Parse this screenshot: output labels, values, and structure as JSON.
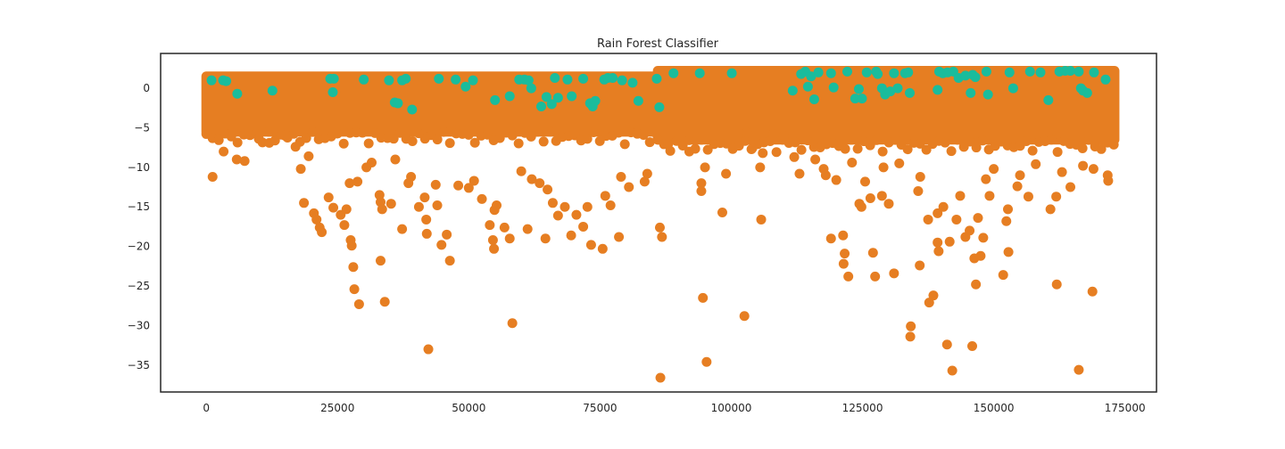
{
  "chart_data": {
    "type": "scatter",
    "title": "Rain Forest Classifier",
    "xlabel": "",
    "ylabel": "",
    "xlim": [
      -8700,
      181000
    ],
    "ylim": [
      -38.4,
      4.4
    ],
    "x_ticks": [
      0,
      25000,
      50000,
      75000,
      100000,
      125000,
      150000,
      175000
    ],
    "x_tick_labels": [
      "0",
      "25000",
      "50000",
      "75000",
      "100000",
      "125000",
      "150000",
      "175000"
    ],
    "y_ticks": [
      0,
      -5,
      -10,
      -15,
      -20,
      -25,
      -30,
      -35
    ],
    "y_tick_labels": [
      "0",
      "−5",
      "−10",
      "−15",
      "−20",
      "−25",
      "−30",
      "−35"
    ],
    "grid": false,
    "legend": "none",
    "colors": {
      "majority": "#e67e22",
      "minority": "#1abc9c",
      "frame": "#262626",
      "text": "#262626"
    },
    "series": [
      {
        "color": "#e67e22",
        "note_dense_band": "dense band of points covering the top of each x range",
        "bands": [
          {
            "x": [
              0,
              86000
            ],
            "y": [
              -5.5,
              1.5
            ]
          },
          {
            "x": [
              86000,
              173000
            ],
            "y": [
              -6.5,
              2.2
            ]
          }
        ],
        "points": [
          [
            1200,
            -11.2
          ],
          [
            3300,
            -8.0
          ],
          [
            5800,
            -9.0
          ],
          [
            7300,
            -9.2
          ],
          [
            18000,
            -10.2
          ],
          [
            18600,
            -14.5
          ],
          [
            20500,
            -15.8
          ],
          [
            21000,
            -16.6
          ],
          [
            21600,
            -17.6
          ],
          [
            22000,
            -18.2
          ],
          [
            23300,
            -13.8
          ],
          [
            24200,
            -15.1
          ],
          [
            25600,
            -16.0
          ],
          [
            26300,
            -17.3
          ],
          [
            26700,
            -15.3
          ],
          [
            27500,
            -19.2
          ],
          [
            27700,
            -19.9
          ],
          [
            28000,
            -22.6
          ],
          [
            28200,
            -25.4
          ],
          [
            29100,
            -27.3
          ],
          [
            27300,
            -12.0
          ],
          [
            28800,
            -11.8
          ],
          [
            33000,
            -13.5
          ],
          [
            33200,
            -14.4
          ],
          [
            33500,
            -15.3
          ],
          [
            33200,
            -21.8
          ],
          [
            34000,
            -27.0
          ],
          [
            35200,
            -14.6
          ],
          [
            37300,
            -17.8
          ],
          [
            39000,
            -11.2
          ],
          [
            40500,
            -15.0
          ],
          [
            41600,
            -13.8
          ],
          [
            41900,
            -16.6
          ],
          [
            42000,
            -18.4
          ],
          [
            42300,
            -33.0
          ],
          [
            43700,
            -12.2
          ],
          [
            44000,
            -14.8
          ],
          [
            44800,
            -19.8
          ],
          [
            45800,
            -18.5
          ],
          [
            46400,
            -21.8
          ],
          [
            54000,
            -17.3
          ],
          [
            54600,
            -19.2
          ],
          [
            54800,
            -20.3
          ],
          [
            54900,
            -15.4
          ],
          [
            55300,
            -14.8
          ],
          [
            56800,
            -17.6
          ],
          [
            57800,
            -19.0
          ],
          [
            58300,
            -29.7
          ],
          [
            61200,
            -17.8
          ],
          [
            64600,
            -19.0
          ],
          [
            66000,
            -14.5
          ],
          [
            67000,
            -16.1
          ],
          [
            68300,
            -15.0
          ],
          [
            69500,
            -18.6
          ],
          [
            70500,
            -16.0
          ],
          [
            71800,
            -17.5
          ],
          [
            72600,
            -15.0
          ],
          [
            73300,
            -19.8
          ],
          [
            75500,
            -20.3
          ],
          [
            78600,
            -18.8
          ],
          [
            86400,
            -17.6
          ],
          [
            86800,
            -18.8
          ],
          [
            86500,
            -36.6
          ],
          [
            94600,
            -26.5
          ],
          [
            95300,
            -34.6
          ],
          [
            94300,
            -13.0
          ],
          [
            94300,
            -12.0
          ],
          [
            95000,
            -10.0
          ],
          [
            98300,
            -15.7
          ],
          [
            102500,
            -28.8
          ],
          [
            105700,
            -16.6
          ],
          [
            105500,
            -10.0
          ],
          [
            112000,
            -8.7
          ],
          [
            117600,
            -10.2
          ],
          [
            119000,
            -19.0
          ],
          [
            120000,
            -11.6
          ],
          [
            121300,
            -18.6
          ],
          [
            121600,
            -20.9
          ],
          [
            121400,
            -22.2
          ],
          [
            122300,
            -23.8
          ],
          [
            124400,
            -14.6
          ],
          [
            124800,
            -15.0
          ],
          [
            126500,
            -13.9
          ],
          [
            127000,
            -20.8
          ],
          [
            127400,
            -23.8
          ],
          [
            128700,
            -13.6
          ],
          [
            130000,
            -14.6
          ],
          [
            131000,
            -23.4
          ],
          [
            134200,
            -30.1
          ],
          [
            134100,
            -31.4
          ],
          [
            135600,
            -13.0
          ],
          [
            135900,
            -22.4
          ],
          [
            137500,
            -16.6
          ],
          [
            137700,
            -27.1
          ],
          [
            138500,
            -26.2
          ],
          [
            139300,
            -19.5
          ],
          [
            139500,
            -20.6
          ],
          [
            139300,
            -15.8
          ],
          [
            140400,
            -15.0
          ],
          [
            141100,
            -32.4
          ],
          [
            141600,
            -19.4
          ],
          [
            142100,
            -35.7
          ],
          [
            142900,
            -16.6
          ],
          [
            143600,
            -13.6
          ],
          [
            144600,
            -18.8
          ],
          [
            145400,
            -18.0
          ],
          [
            145900,
            -32.6
          ],
          [
            146300,
            -21.5
          ],
          [
            146600,
            -24.8
          ],
          [
            147000,
            -16.4
          ],
          [
            147500,
            -21.2
          ],
          [
            148000,
            -18.9
          ],
          [
            149200,
            -13.6
          ],
          [
            151800,
            -23.6
          ],
          [
            152400,
            -16.8
          ],
          [
            152800,
            -20.7
          ],
          [
            152700,
            -15.3
          ],
          [
            154500,
            -12.4
          ],
          [
            156600,
            -13.7
          ],
          [
            160800,
            -15.3
          ],
          [
            162000,
            -24.8
          ],
          [
            161900,
            -13.7
          ],
          [
            164600,
            -12.5
          ],
          [
            166200,
            -35.6
          ],
          [
            168800,
            -25.7
          ],
          [
            171700,
            -11.0
          ],
          [
            171800,
            -11.7
          ],
          [
            38500,
            -12.0
          ],
          [
            48000,
            -12.3
          ],
          [
            50000,
            -12.6
          ],
          [
            51000,
            -11.7
          ],
          [
            52500,
            -14.0
          ],
          [
            60000,
            -10.5
          ],
          [
            62000,
            -11.5
          ],
          [
            63500,
            -12.0
          ],
          [
            65000,
            -12.8
          ],
          [
            76000,
            -13.6
          ],
          [
            77000,
            -14.8
          ],
          [
            79000,
            -11.2
          ],
          [
            80500,
            -12.5
          ],
          [
            83500,
            -11.8
          ],
          [
            84000,
            -10.8
          ],
          [
            88000,
            -7.0
          ],
          [
            92000,
            -8.0
          ],
          [
            99000,
            -10.8
          ],
          [
            103000,
            -5.6
          ],
          [
            104000,
            -7.6
          ],
          [
            106000,
            -8.2
          ],
          [
            108000,
            -5.8
          ],
          [
            110000,
            -6.0
          ],
          [
            113000,
            -10.8
          ],
          [
            116000,
            -9.0
          ],
          [
            118000,
            -11.0
          ],
          [
            123000,
            -9.4
          ],
          [
            125500,
            -11.8
          ],
          [
            129000,
            -10.0
          ],
          [
            132000,
            -9.5
          ],
          [
            136000,
            -11.2
          ],
          [
            148500,
            -11.5
          ],
          [
            150000,
            -10.2
          ],
          [
            155000,
            -11.0
          ],
          [
            158000,
            -9.6
          ],
          [
            163000,
            -10.6
          ],
          [
            167000,
            -9.8
          ],
          [
            169000,
            -10.2
          ],
          [
            8000,
            -5.8
          ],
          [
            10000,
            -6.4
          ],
          [
            12000,
            -6.9
          ],
          [
            15000,
            -6.0
          ],
          [
            17000,
            -7.4
          ],
          [
            19500,
            -8.6
          ],
          [
            30500,
            -10.0
          ],
          [
            31500,
            -9.4
          ],
          [
            36000,
            -9.0
          ]
        ]
      },
      {
        "color": "#1abc9c",
        "points": [
          [
            1000,
            1.0
          ],
          [
            3200,
            1.0
          ],
          [
            3800,
            0.9
          ],
          [
            5900,
            -0.7
          ],
          [
            12600,
            -0.3
          ],
          [
            23600,
            1.2
          ],
          [
            24300,
            1.2
          ],
          [
            24100,
            -0.5
          ],
          [
            30000,
            1.1
          ],
          [
            34800,
            1.0
          ],
          [
            35900,
            -1.8
          ],
          [
            36500,
            -1.9
          ],
          [
            37300,
            1.0
          ],
          [
            38000,
            1.2
          ],
          [
            39200,
            -2.7
          ],
          [
            44300,
            1.2
          ],
          [
            47500,
            1.1
          ],
          [
            49400,
            0.2
          ],
          [
            50800,
            1.0
          ],
          [
            55000,
            -1.5
          ],
          [
            57800,
            -1.0
          ],
          [
            59600,
            1.1
          ],
          [
            60600,
            1.1
          ],
          [
            61400,
            1.0
          ],
          [
            61900,
            0.0
          ],
          [
            63800,
            -2.3
          ],
          [
            64800,
            -1.1
          ],
          [
            65800,
            -2.0
          ],
          [
            66400,
            1.3
          ],
          [
            67000,
            -1.2
          ],
          [
            68800,
            1.1
          ],
          [
            69600,
            -1.0
          ],
          [
            71800,
            1.2
          ],
          [
            73100,
            -1.9
          ],
          [
            73600,
            -2.3
          ],
          [
            74100,
            -1.6
          ],
          [
            75800,
            1.1
          ],
          [
            76500,
            1.3
          ],
          [
            77400,
            1.3
          ],
          [
            79200,
            1.0
          ],
          [
            81200,
            0.7
          ],
          [
            82300,
            -1.6
          ],
          [
            85800,
            1.2
          ],
          [
            86300,
            -2.4
          ],
          [
            89000,
            1.9
          ],
          [
            94000,
            1.9
          ],
          [
            100100,
            1.9
          ],
          [
            111700,
            -0.3
          ],
          [
            113300,
            1.8
          ],
          [
            114100,
            2.1
          ],
          [
            114600,
            0.2
          ],
          [
            115200,
            1.5
          ],
          [
            115800,
            -1.4
          ],
          [
            116600,
            2.0
          ],
          [
            119000,
            1.9
          ],
          [
            119500,
            0.1
          ],
          [
            122100,
            2.1
          ],
          [
            123600,
            -1.3
          ],
          [
            124300,
            -0.1
          ],
          [
            124900,
            -1.3
          ],
          [
            125800,
            2.0
          ],
          [
            127600,
            2.1
          ],
          [
            127900,
            1.8
          ],
          [
            128700,
            0.0
          ],
          [
            129300,
            -0.8
          ],
          [
            130300,
            -0.4
          ],
          [
            131000,
            1.9
          ],
          [
            131700,
            0.0
          ],
          [
            133100,
            1.9
          ],
          [
            133700,
            2.0
          ],
          [
            134000,
            -0.6
          ],
          [
            139300,
            -0.2
          ],
          [
            139600,
            2.1
          ],
          [
            140300,
            1.9
          ],
          [
            141200,
            2.0
          ],
          [
            142300,
            2.1
          ],
          [
            143300,
            1.3
          ],
          [
            144600,
            1.6
          ],
          [
            145600,
            -0.6
          ],
          [
            146000,
            1.7
          ],
          [
            146500,
            1.4
          ],
          [
            148600,
            2.1
          ],
          [
            148900,
            -0.8
          ],
          [
            153000,
            2.0
          ],
          [
            153700,
            0.0
          ],
          [
            156900,
            2.1
          ],
          [
            158900,
            2.0
          ],
          [
            160400,
            -1.5
          ],
          [
            162500,
            2.1
          ],
          [
            163600,
            2.2
          ],
          [
            164600,
            2.2
          ],
          [
            166200,
            2.1
          ],
          [
            166600,
            0.0
          ],
          [
            167000,
            -0.3
          ],
          [
            167800,
            -0.6
          ],
          [
            169100,
            2.0
          ],
          [
            171300,
            1.1
          ]
        ]
      }
    ]
  }
}
